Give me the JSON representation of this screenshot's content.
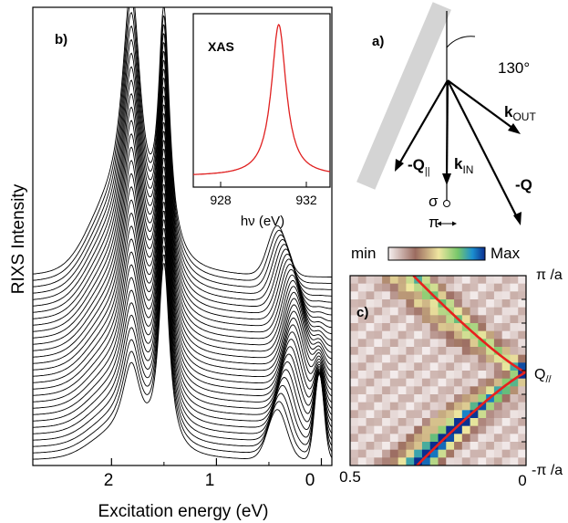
{
  "panel_b": {
    "label": "b)",
    "ylabel": "RIXS Intensity",
    "xlabel": "Excitation energy (eV)",
    "xticks": [
      "2",
      "1",
      "0"
    ],
    "inset": {
      "label": "XAS",
      "xlabel": "hν (eV)",
      "xticks": [
        "928",
        "932"
      ],
      "line_color": "#e02020"
    }
  },
  "panel_a": {
    "label": "a)",
    "angle": "130°",
    "k_out_main": "k",
    "k_out_sub": "OUT",
    "k_in_main": "k",
    "k_in_sub": "IN",
    "q_par_main": "-Q",
    "q_par_sub": "||",
    "q_label": "-Q",
    "sigma": "σ",
    "pi": "π"
  },
  "colorbar": {
    "min_label": "min",
    "max_label": "Max",
    "stops": [
      "#f4ecec",
      "#9b6b5f",
      "#efe6a0",
      "#76c76a",
      "#1b8fd0",
      "#0b2d8f"
    ]
  },
  "panel_c": {
    "label": "c)",
    "x_left": "0.5",
    "x_right": "0",
    "y_top": "π /a",
    "y_mid_main": "Q",
    "y_mid_sub": "//",
    "y_bottom": "-π /a",
    "dispersion_color": "#e8201e"
  },
  "chart_data": [
    {
      "type": "line",
      "panel": "b",
      "title": "",
      "xlabel": "Excitation energy (eV)",
      "ylabel": "RIXS Intensity",
      "x_ticks": [
        2,
        1,
        0
      ],
      "xlim": [
        2.75,
        -0.1
      ],
      "axis_direction": "reversed",
      "n_spectra": 30,
      "peaks_eV": [
        1.8,
        1.5,
        0.35,
        0.0
      ],
      "stacked": true
    },
    {
      "type": "line",
      "panel": "inset",
      "title": "XAS",
      "xlabel": "hν (eV)",
      "x_ticks": [
        928,
        932
      ],
      "xlim": [
        926.8,
        933.2
      ],
      "peak_x": 930.8
    },
    {
      "type": "heatmap",
      "panel": "c",
      "x_range": [
        0.5,
        0
      ],
      "y_ticks": [
        "π /a",
        "Q//",
        "-π /a"
      ],
      "colorscale": [
        "min",
        "Max"
      ]
    }
  ]
}
